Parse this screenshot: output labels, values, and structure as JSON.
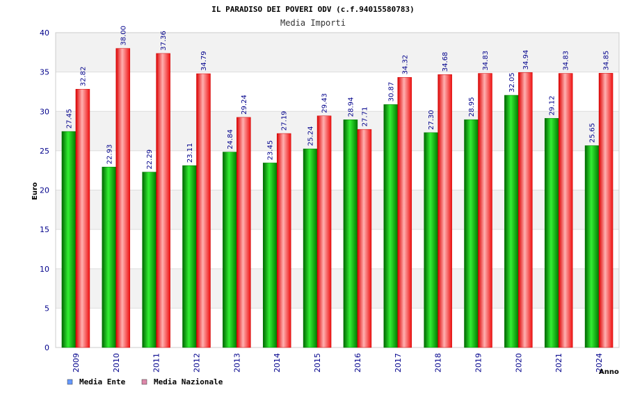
{
  "chart_data": {
    "type": "bar",
    "title": "IL PARADISO DEI POVERI ODV (c.f.94015580783)",
    "subtitle": "Media Importi",
    "xlabel": "Anno",
    "ylabel": "Euro",
    "ylim": [
      0,
      40
    ],
    "yticks": [
      0,
      5,
      10,
      15,
      20,
      25,
      30,
      35,
      40
    ],
    "grid": true,
    "legend_position": "bottom-left",
    "categories": [
      "2009",
      "2010",
      "2011",
      "2012",
      "2013",
      "2014",
      "2015",
      "2016",
      "2017",
      "2018",
      "2019",
      "2020",
      "2021",
      "2024"
    ],
    "series": [
      {
        "name": "Media Ente",
        "values": [
          27.45,
          22.93,
          22.29,
          23.11,
          24.84,
          23.45,
          25.24,
          28.94,
          30.87,
          27.3,
          28.95,
          32.05,
          29.12,
          25.65
        ],
        "labels": [
          "27.45",
          "22.93",
          "22.29",
          "23.11",
          "24.84",
          "23.45",
          "25.24",
          "28.94",
          "30.87",
          "27.30",
          "28.95",
          "32.05",
          "29.12",
          "25.65"
        ],
        "bar_color": "#00cc00",
        "legend_color": "#6699ff"
      },
      {
        "name": "Media Nazionale",
        "values": [
          32.82,
          38.0,
          37.36,
          34.79,
          29.24,
          27.19,
          29.43,
          27.71,
          34.32,
          34.68,
          34.83,
          34.94,
          34.83,
          34.85
        ],
        "labels": [
          "32.82",
          "38.00",
          "37.36",
          "34.79",
          "29.24",
          "27.19",
          "29.43",
          "27.71",
          "34.32",
          "34.68",
          "34.83",
          "34.94",
          "34.83",
          "34.85"
        ],
        "bar_color": "#ee2222",
        "legend_color": "#dd88aa"
      }
    ]
  }
}
